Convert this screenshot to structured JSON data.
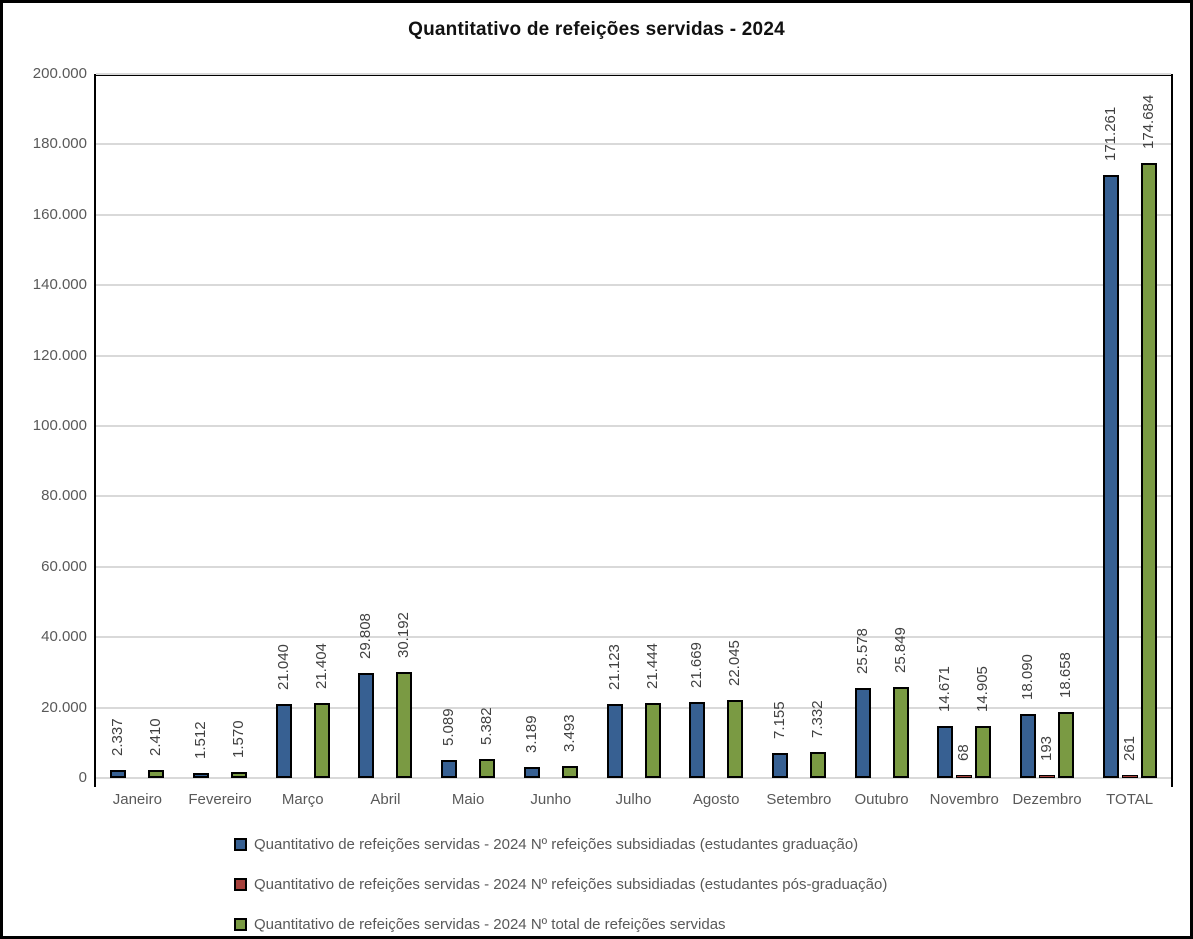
{
  "title": "Quantitativo de refeições servidas - 2024",
  "chart_data": {
    "type": "bar",
    "title": "Quantitativo de refeições servidas - 2024",
    "categories": [
      "Janeiro",
      "Fevereiro",
      "Março",
      "Abril",
      "Maio",
      "Junho",
      "Julho",
      "Agosto",
      "Setembro",
      "Outubro",
      "Novembro",
      "Dezembro",
      "TOTAL"
    ],
    "series": [
      {
        "name": "Quantitativo de refeições servidas - 2024 Nº refeições subsidiadas (estudantes graduação)",
        "color": "#376092",
        "values": [
          2337,
          1512,
          21040,
          29808,
          5089,
          3189,
          21123,
          21669,
          7155,
          25578,
          14671,
          18090,
          171261
        ],
        "labels": [
          "2.337",
          "1.512",
          "21.040",
          "29.808",
          "5.089",
          "3.189",
          "21.123",
          "21.669",
          "7.155",
          "25.578",
          "14.671",
          "18.090",
          "171.261"
        ]
      },
      {
        "name": "Quantitativo de refeições servidas - 2024 Nº refeições subsidiadas (estudantes pós-graduação)",
        "color": "#A6413C",
        "values": [
          0,
          0,
          0,
          0,
          0,
          0,
          0,
          0,
          0,
          0,
          68,
          193,
          261
        ],
        "labels": [
          "",
          "",
          "",
          "",
          "",
          "",
          "",
          "",
          "",
          "",
          "68",
          "193",
          "261"
        ]
      },
      {
        "name": "Quantitativo de refeições servidas - 2024 Nº total de refeições servidas",
        "color": "#7A9A43",
        "values": [
          2410,
          1570,
          21404,
          30192,
          5382,
          3493,
          21444,
          22045,
          7332,
          25849,
          14905,
          18658,
          174684
        ],
        "labels": [
          "2.410",
          "1.570",
          "21.404",
          "30.192",
          "5.382",
          "3.493",
          "21.444",
          "22.045",
          "7.332",
          "25.849",
          "14.905",
          "18.658",
          "174.684"
        ]
      }
    ],
    "ylim": [
      0,
      200000
    ],
    "ytick_step": 20000,
    "ytick_labels": [
      "0",
      "20.000",
      "40.000",
      "60.000",
      "80.000",
      "100.000",
      "120.000",
      "140.000",
      "160.000",
      "180.000",
      "200.000"
    ],
    "grid": true,
    "legend_position": "bottom"
  },
  "colors": {
    "gridline": "#d9d9d9",
    "axis_text": "#595959",
    "data_label": "#404040",
    "bar_border": "#000000",
    "frame_border": "#000000"
  }
}
